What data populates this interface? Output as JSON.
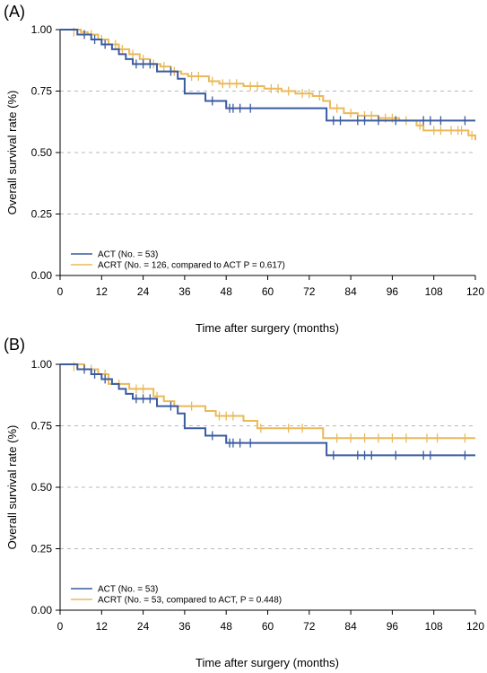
{
  "chart_data": [
    {
      "type": "line",
      "panel_label": "(A)",
      "xlabel": "Time after surgery (months)",
      "ylabel": "Overall survival rate (%)",
      "xlim": [
        0,
        120
      ],
      "ylim": [
        0,
        1
      ],
      "xticks": [
        "0",
        "12",
        "24",
        "36",
        "48",
        "60",
        "72",
        "84",
        "96",
        "108",
        "120"
      ],
      "yticks": [
        "0.00",
        "0.25",
        "0.50",
        "0.75",
        "1.00"
      ],
      "grid": "dashed horizontal at 0.25, 0.50, 0.75",
      "legend_position": "bottom-left",
      "series": [
        {
          "name": "ACT (No. = 53)",
          "color": "#3a5ba0",
          "steps": [
            [
              0,
              1.0
            ],
            [
              5,
              0.98
            ],
            [
              9,
              0.96
            ],
            [
              12,
              0.94
            ],
            [
              15,
              0.92
            ],
            [
              17,
              0.9
            ],
            [
              19,
              0.88
            ],
            [
              21,
              0.86
            ],
            [
              28,
              0.83
            ],
            [
              34,
              0.8
            ],
            [
              36,
              0.74
            ],
            [
              42,
              0.71
            ],
            [
              48,
              0.68
            ],
            [
              77,
              0.63
            ],
            [
              120,
              0.63
            ]
          ],
          "censored": [
            [
              7,
              0.98
            ],
            [
              10,
              0.96
            ],
            [
              13,
              0.94
            ],
            [
              22,
              0.86
            ],
            [
              24,
              0.86
            ],
            [
              26,
              0.86
            ],
            [
              32,
              0.83
            ],
            [
              44,
              0.71
            ],
            [
              49,
              0.68
            ],
            [
              50,
              0.68
            ],
            [
              52,
              0.68
            ],
            [
              55,
              0.68
            ],
            [
              79,
              0.63
            ],
            [
              81,
              0.63
            ],
            [
              86,
              0.63
            ],
            [
              88,
              0.63
            ],
            [
              92,
              0.63
            ],
            [
              97,
              0.63
            ],
            [
              105,
              0.63
            ],
            [
              107,
              0.63
            ],
            [
              110,
              0.63
            ],
            [
              117,
              0.63
            ]
          ]
        },
        {
          "name": "ACRT (No. = 126, compared to ACT P = 0.617)",
          "color": "#eab95a",
          "steps": [
            [
              0,
              1.0
            ],
            [
              6,
              0.99
            ],
            [
              8,
              0.98
            ],
            [
              11,
              0.96
            ],
            [
              14,
              0.94
            ],
            [
              17,
              0.92
            ],
            [
              20,
              0.9
            ],
            [
              23,
              0.88
            ],
            [
              26,
              0.86
            ],
            [
              29,
              0.85
            ],
            [
              32,
              0.83
            ],
            [
              35,
              0.82
            ],
            [
              37,
              0.81
            ],
            [
              43,
              0.79
            ],
            [
              46,
              0.78
            ],
            [
              53,
              0.77
            ],
            [
              59,
              0.76
            ],
            [
              64,
              0.75
            ],
            [
              68,
              0.74
            ],
            [
              73,
              0.73
            ],
            [
              76,
              0.71
            ],
            [
              78,
              0.68
            ],
            [
              82,
              0.66
            ],
            [
              86,
              0.65
            ],
            [
              92,
              0.64
            ],
            [
              98,
              0.63
            ],
            [
              103,
              0.61
            ],
            [
              105,
              0.59
            ],
            [
              118,
              0.57
            ],
            [
              120,
              0.55
            ]
          ],
          "censored": [
            [
              4,
              0.99
            ],
            [
              9,
              0.98
            ],
            [
              12,
              0.96
            ],
            [
              16,
              0.94
            ],
            [
              18,
              0.92
            ],
            [
              21,
              0.9
            ],
            [
              24,
              0.88
            ],
            [
              27,
              0.86
            ],
            [
              30,
              0.85
            ],
            [
              33,
              0.83
            ],
            [
              38,
              0.81
            ],
            [
              40,
              0.81
            ],
            [
              44,
              0.79
            ],
            [
              47,
              0.78
            ],
            [
              49,
              0.78
            ],
            [
              51,
              0.78
            ],
            [
              55,
              0.77
            ],
            [
              57,
              0.77
            ],
            [
              61,
              0.76
            ],
            [
              63,
              0.76
            ],
            [
              66,
              0.75
            ],
            [
              70,
              0.74
            ],
            [
              72,
              0.74
            ],
            [
              75,
              0.73
            ],
            [
              80,
              0.68
            ],
            [
              84,
              0.66
            ],
            [
              88,
              0.65
            ],
            [
              90,
              0.65
            ],
            [
              94,
              0.64
            ],
            [
              96,
              0.64
            ],
            [
              100,
              0.63
            ],
            [
              104,
              0.61
            ],
            [
              108,
              0.59
            ],
            [
              110,
              0.59
            ],
            [
              113,
              0.59
            ],
            [
              115,
              0.59
            ],
            [
              116,
              0.59
            ],
            [
              119,
              0.57
            ]
          ]
        }
      ]
    },
    {
      "type": "line",
      "panel_label": "(B)",
      "xlabel": "Time after surgery (months)",
      "ylabel": "Overall survival rate (%)",
      "xlim": [
        0,
        120
      ],
      "ylim": [
        0,
        1
      ],
      "xticks": [
        "0",
        "12",
        "24",
        "36",
        "48",
        "60",
        "72",
        "84",
        "96",
        "108",
        "120"
      ],
      "yticks": [
        "0.00",
        "0.25",
        "0.50",
        "0.75",
        "1.00"
      ],
      "grid": "dashed horizontal at 0.25, 0.50, 0.75",
      "legend_position": "bottom-left",
      "series": [
        {
          "name": "ACT (No. = 53)",
          "color": "#3a5ba0",
          "steps": [
            [
              0,
              1.0
            ],
            [
              5,
              0.98
            ],
            [
              9,
              0.96
            ],
            [
              12,
              0.94
            ],
            [
              15,
              0.92
            ],
            [
              17,
              0.9
            ],
            [
              19,
              0.88
            ],
            [
              21,
              0.86
            ],
            [
              28,
              0.83
            ],
            [
              34,
              0.8
            ],
            [
              36,
              0.74
            ],
            [
              42,
              0.71
            ],
            [
              48,
              0.68
            ],
            [
              77,
              0.63
            ],
            [
              120,
              0.63
            ]
          ],
          "censored": [
            [
              7,
              0.98
            ],
            [
              10,
              0.96
            ],
            [
              13,
              0.94
            ],
            [
              22,
              0.86
            ],
            [
              24,
              0.86
            ],
            [
              26,
              0.86
            ],
            [
              32,
              0.83
            ],
            [
              44,
              0.71
            ],
            [
              49,
              0.68
            ],
            [
              50,
              0.68
            ],
            [
              52,
              0.68
            ],
            [
              55,
              0.68
            ],
            [
              79,
              0.63
            ],
            [
              86,
              0.63
            ],
            [
              88,
              0.63
            ],
            [
              90,
              0.63
            ],
            [
              97,
              0.63
            ],
            [
              105,
              0.63
            ],
            [
              107,
              0.63
            ],
            [
              117,
              0.63
            ]
          ]
        },
        {
          "name": "ACRT (No. = 53, compared to ACT, P = 0.448)",
          "color": "#eab95a",
          "steps": [
            [
              0,
              1.0
            ],
            [
              7,
              0.98
            ],
            [
              11,
              0.96
            ],
            [
              14,
              0.92
            ],
            [
              20,
              0.9
            ],
            [
              27,
              0.87
            ],
            [
              30,
              0.85
            ],
            [
              33,
              0.83
            ],
            [
              42,
              0.81
            ],
            [
              45,
              0.79
            ],
            [
              53,
              0.77
            ],
            [
              57,
              0.74
            ],
            [
              76,
              0.7
            ],
            [
              120,
              0.7
            ]
          ],
          "censored": [
            [
              4,
              0.99
            ],
            [
              9,
              0.98
            ],
            [
              13,
              0.96
            ],
            [
              17,
              0.92
            ],
            [
              22,
              0.9
            ],
            [
              24,
              0.9
            ],
            [
              28,
              0.87
            ],
            [
              38,
              0.83
            ],
            [
              46,
              0.79
            ],
            [
              48,
              0.79
            ],
            [
              50,
              0.79
            ],
            [
              58,
              0.74
            ],
            [
              66,
              0.74
            ],
            [
              70,
              0.74
            ],
            [
              80,
              0.7
            ],
            [
              84,
              0.7
            ],
            [
              88,
              0.7
            ],
            [
              92,
              0.7
            ],
            [
              96,
              0.7
            ],
            [
              100,
              0.7
            ],
            [
              106,
              0.7
            ],
            [
              109,
              0.7
            ],
            [
              117,
              0.7
            ]
          ]
        }
      ]
    }
  ]
}
